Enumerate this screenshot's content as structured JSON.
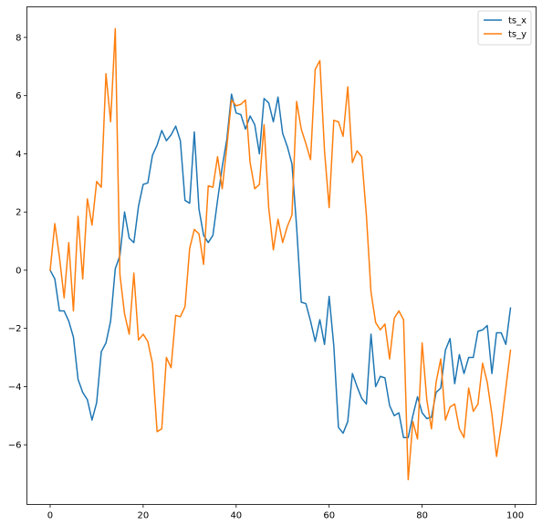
{
  "chart_data": {
    "type": "line",
    "title": "",
    "xlabel": "",
    "ylabel": "",
    "xlim": [
      -5,
      104.5
    ],
    "ylim": [
      -8.05,
      9.05
    ],
    "xticks": [
      0,
      20,
      40,
      60,
      80,
      100
    ],
    "yticks": [
      -6,
      -4,
      -2,
      0,
      2,
      4,
      6,
      8
    ],
    "grid": false,
    "legend": "top-right",
    "series": [
      {
        "name": "ts_x",
        "color": "#1f77b4",
        "x": [
          0,
          1,
          2,
          3,
          4,
          5,
          6,
          7,
          8,
          9,
          10,
          11,
          12,
          13,
          14,
          15,
          16,
          17,
          18,
          19,
          20,
          21,
          22,
          23,
          24,
          25,
          26,
          27,
          28,
          29,
          30,
          31,
          32,
          33,
          34,
          35,
          36,
          37,
          38,
          39,
          40,
          41,
          42,
          43,
          44,
          45,
          46,
          47,
          48,
          49,
          50,
          51,
          52,
          53,
          54,
          55,
          56,
          57,
          58,
          59,
          60,
          61,
          62,
          63,
          64,
          65,
          66,
          67,
          68,
          69,
          70,
          71,
          72,
          73,
          74,
          75,
          76,
          77,
          78,
          79,
          80,
          81,
          82,
          83,
          84,
          85,
          86,
          87,
          88,
          89,
          90,
          91,
          92,
          93,
          94,
          95,
          96,
          97,
          98,
          99
        ],
        "values": [
          0,
          -0.3,
          -1.4,
          -1.4,
          -1.75,
          -2.3,
          -3.75,
          -4.2,
          -4.45,
          -5.15,
          -4.55,
          -2.8,
          -2.5,
          -1.75,
          0.05,
          0.5,
          2.0,
          1.1,
          0.95,
          2.2,
          2.95,
          3.0,
          3.95,
          4.3,
          4.8,
          4.45,
          4.65,
          4.95,
          4.45,
          2.4,
          2.3,
          4.75,
          2.1,
          1.2,
          0.95,
          1.2,
          2.4,
          3.55,
          4.5,
          6.05,
          5.4,
          5.35,
          4.85,
          5.3,
          5.0,
          4.0,
          5.9,
          5.75,
          5.1,
          5.95,
          4.7,
          4.25,
          3.65,
          1.5,
          -1.1,
          -1.15,
          -1.75,
          -2.45,
          -1.7,
          -2.55,
          -0.9,
          -2.6,
          -5.4,
          -5.6,
          -5.2,
          -3.55,
          -4.0,
          -4.4,
          -4.6,
          -2.2,
          -4.0,
          -3.65,
          -3.7,
          -4.65,
          -5.0,
          -4.9,
          -5.75,
          -5.75,
          -5.0,
          -4.35,
          -4.9,
          -5.1,
          -5.05,
          -4.2,
          -4.05,
          -2.75,
          -2.35,
          -3.9,
          -2.9,
          -3.55,
          -3.0,
          -3.0,
          -2.1,
          -2.05,
          -1.9,
          -3.55,
          -2.15,
          -2.15,
          -2.55,
          -1.3
        ]
      },
      {
        "name": "ts_y",
        "color": "#ff7f0e",
        "x": [
          0,
          1,
          2,
          3,
          4,
          5,
          6,
          7,
          8,
          9,
          10,
          11,
          12,
          13,
          14,
          15,
          16,
          17,
          18,
          19,
          20,
          21,
          22,
          23,
          24,
          25,
          26,
          27,
          28,
          29,
          30,
          31,
          32,
          33,
          34,
          35,
          36,
          37,
          38,
          39,
          40,
          41,
          42,
          43,
          44,
          45,
          46,
          47,
          48,
          49,
          50,
          51,
          52,
          53,
          54,
          55,
          56,
          57,
          58,
          59,
          60,
          61,
          62,
          63,
          64,
          65,
          66,
          67,
          68,
          69,
          70,
          71,
          72,
          73,
          74,
          75,
          76,
          77,
          78,
          79,
          80,
          81,
          82,
          83,
          84,
          85,
          86,
          87,
          88,
          89,
          90,
          91,
          92,
          93,
          94,
          95,
          96,
          97,
          98,
          99
        ],
        "values": [
          0,
          1.6,
          0.45,
          -0.95,
          0.95,
          -1.4,
          1.85,
          -0.3,
          2.45,
          1.55,
          3.05,
          2.85,
          6.75,
          5.1,
          8.3,
          -0.15,
          -1.5,
          -2.2,
          -0.1,
          -2.4,
          -2.2,
          -2.45,
          -3.2,
          -5.55,
          -5.45,
          -3.0,
          -3.35,
          -1.55,
          -1.6,
          -1.25,
          0.75,
          1.4,
          1.25,
          0.2,
          2.9,
          2.85,
          3.9,
          2.8,
          4.25,
          5.85,
          5.65,
          5.7,
          5.85,
          3.7,
          2.8,
          2.95,
          5.0,
          2.15,
          0.7,
          1.75,
          0.95,
          1.5,
          1.9,
          5.8,
          4.85,
          4.35,
          3.8,
          6.9,
          7.2,
          4.1,
          2.15,
          5.15,
          5.1,
          4.6,
          6.3,
          3.7,
          4.1,
          3.9,
          1.9,
          -0.75,
          -1.8,
          -2.05,
          -1.85,
          -3.05,
          -1.65,
          -1.4,
          -1.7,
          -7.2,
          -5.2,
          -5.8,
          -2.5,
          -4.45,
          -5.45,
          -3.85,
          -3.05,
          -5.15,
          -4.7,
          -4.6,
          -5.45,
          -5.75,
          -4.05,
          -4.85,
          -4.6,
          -3.2,
          -3.85,
          -4.95,
          -6.4,
          -5.35,
          -4.05,
          -2.75
        ]
      }
    ]
  }
}
